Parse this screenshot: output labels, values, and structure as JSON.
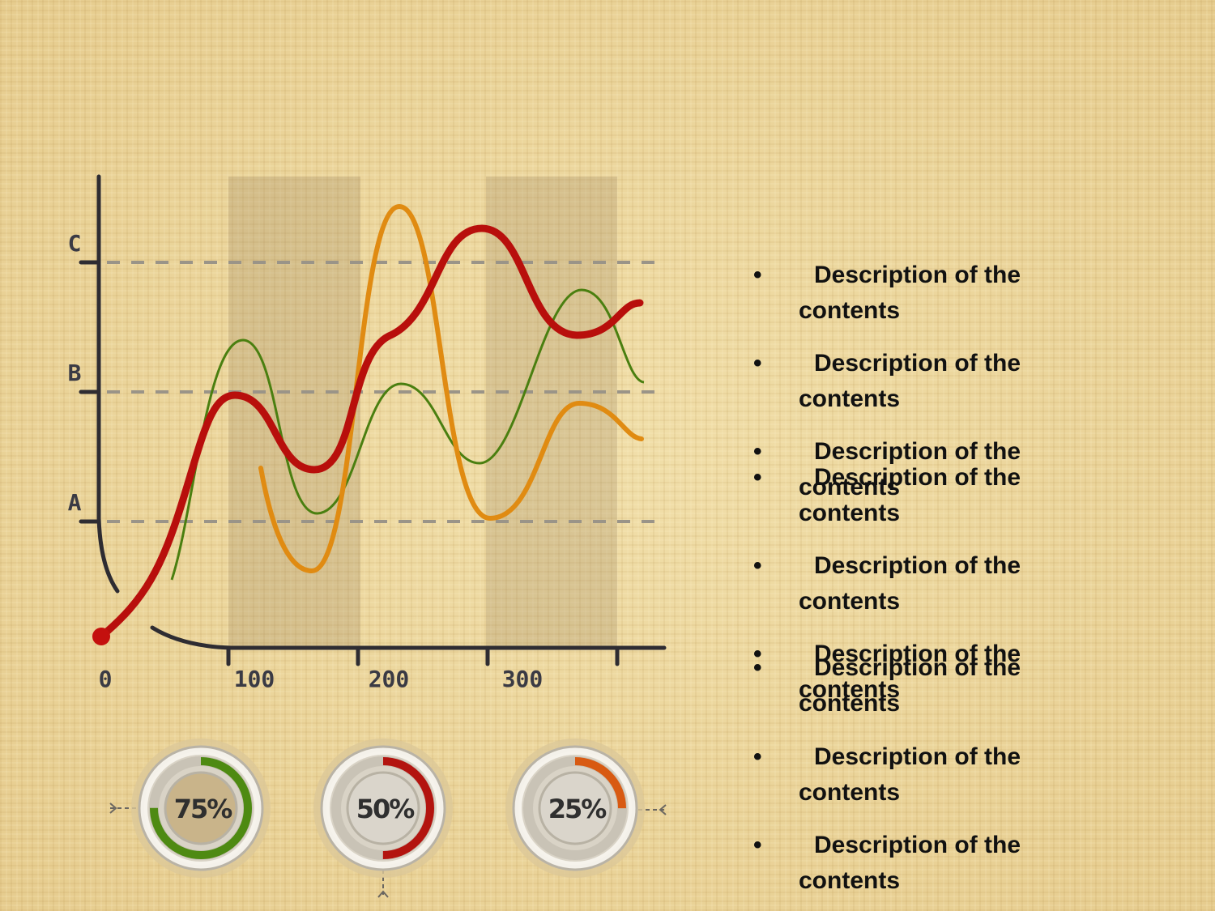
{
  "chart": {
    "y_labels": [
      "C",
      "B",
      "A"
    ],
    "x_labels": [
      "0",
      "100",
      "200",
      "300"
    ]
  },
  "gauges": [
    {
      "value": 75,
      "label": "75%",
      "color": "#4e8a12"
    },
    {
      "value": 50,
      "label": "50%",
      "color": "#b3140f"
    },
    {
      "value": 25,
      "label": "25%",
      "color": "#d85a12"
    }
  ],
  "bullets": [
    "Description of the contents",
    "Description of the contents",
    "Description of the contents",
    "Description of the contents",
    "Description of the contents",
    "Description of the contents",
    "Description of the contents",
    "Description of the contents",
    "Description of the contents"
  ]
}
